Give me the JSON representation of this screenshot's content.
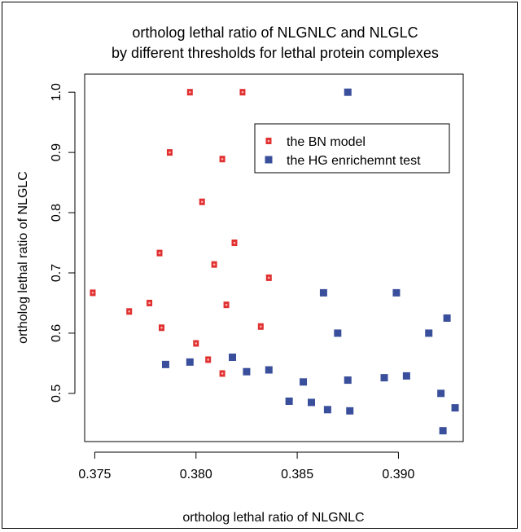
{
  "chart_data": {
    "type": "scatter",
    "title": [
      "ortholog lethal ratio of NLGNLC and NLGLC",
      "by different thresholds for lethal protein complexes"
    ],
    "xlabel": "ortholog lethal ratio of NLGNLC",
    "ylabel": "ortholog lethal ratio of NLGLC",
    "xlim": [
      0.3745,
      0.3932
    ],
    "ylim": [
      0.42,
      1.03
    ],
    "xticks": [
      0.375,
      0.38,
      0.385,
      0.39
    ],
    "xtick_labels": [
      "0.375",
      "0.380",
      "0.385",
      "0.390"
    ],
    "yticks": [
      0.5,
      0.6,
      0.7,
      0.8,
      0.9,
      1.0
    ],
    "ytick_labels": [
      "0.5",
      "0.6",
      "0.7",
      "0.8",
      "0.9",
      "1.0"
    ],
    "legend_position": "top-right",
    "grid": false,
    "series": [
      {
        "name": "the BN model",
        "color": "#e03030",
        "marker": "square-with-dot",
        "points": [
          [
            0.3749,
            0.667
          ],
          [
            0.3767,
            0.636
          ],
          [
            0.3777,
            0.65
          ],
          [
            0.3782,
            0.733
          ],
          [
            0.3783,
            0.609
          ],
          [
            0.3787,
            0.9
          ],
          [
            0.3797,
            1.0
          ],
          [
            0.38,
            0.583
          ],
          [
            0.3803,
            0.818
          ],
          [
            0.3806,
            0.556
          ],
          [
            0.3809,
            0.714
          ],
          [
            0.3813,
            0.889
          ],
          [
            0.3813,
            0.533
          ],
          [
            0.3815,
            0.647
          ],
          [
            0.3819,
            0.75
          ],
          [
            0.3823,
            1.0
          ],
          [
            0.3832,
            0.611
          ],
          [
            0.3836,
            0.692
          ]
        ]
      },
      {
        "name": "the HG enrichemnt test",
        "color": "#3a4f9c",
        "marker": "square",
        "points": [
          [
            0.3785,
            0.548
          ],
          [
            0.3797,
            0.552
          ],
          [
            0.3818,
            0.56
          ],
          [
            0.3825,
            0.536
          ],
          [
            0.3836,
            0.539
          ],
          [
            0.3846,
            0.487
          ],
          [
            0.3853,
            0.519
          ],
          [
            0.3857,
            0.485
          ],
          [
            0.3863,
            0.667
          ],
          [
            0.3865,
            0.473
          ],
          [
            0.387,
            0.6
          ],
          [
            0.3875,
            1.0
          ],
          [
            0.3875,
            0.522
          ],
          [
            0.3876,
            0.471
          ],
          [
            0.3893,
            0.526
          ],
          [
            0.3899,
            0.667
          ],
          [
            0.3904,
            0.529
          ],
          [
            0.3915,
            0.6
          ],
          [
            0.3921,
            0.5
          ],
          [
            0.3922,
            0.438
          ],
          [
            0.3924,
            0.625
          ],
          [
            0.3928,
            0.476
          ]
        ]
      }
    ]
  }
}
